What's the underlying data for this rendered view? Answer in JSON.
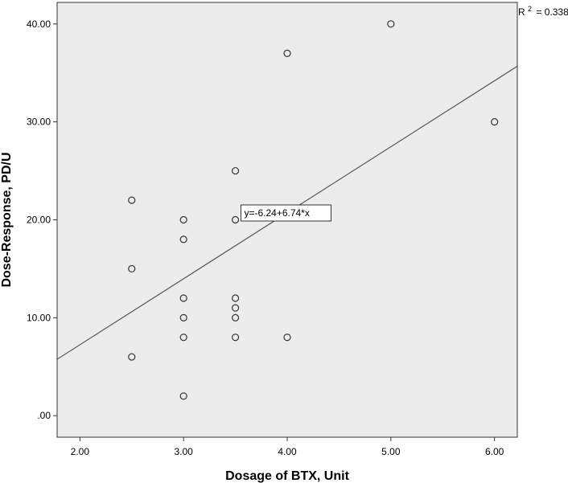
{
  "chart_data": {
    "type": "scatter",
    "title": "",
    "xlabel": "Dosage of BTX, Unit",
    "ylabel": "Dose-Response, PD/U",
    "xlim": [
      1.78,
      6.22
    ],
    "ylim": [
      -2.2,
      42.2
    ],
    "x_ticks": [
      2,
      3,
      4,
      5,
      6
    ],
    "x_tick_labels": [
      "2.00",
      "3.00",
      "4.00",
      "5.00",
      "6.00"
    ],
    "y_ticks": [
      0,
      10,
      20,
      30,
      40
    ],
    "y_tick_labels": [
      ".00",
      "10.00",
      "20.00",
      "30.00",
      "40.00"
    ],
    "grid": false,
    "legend": "none",
    "points": [
      {
        "x": 2.5,
        "y": 22
      },
      {
        "x": 2.5,
        "y": 15
      },
      {
        "x": 2.5,
        "y": 6
      },
      {
        "x": 3.0,
        "y": 20
      },
      {
        "x": 3.0,
        "y": 18
      },
      {
        "x": 3.0,
        "y": 12
      },
      {
        "x": 3.0,
        "y": 10
      },
      {
        "x": 3.0,
        "y": 8
      },
      {
        "x": 3.0,
        "y": 2
      },
      {
        "x": 3.5,
        "y": 25
      },
      {
        "x": 3.5,
        "y": 20
      },
      {
        "x": 3.5,
        "y": 12
      },
      {
        "x": 3.5,
        "y": 11
      },
      {
        "x": 3.5,
        "y": 10
      },
      {
        "x": 3.5,
        "y": 8
      },
      {
        "x": 4.0,
        "y": 37
      },
      {
        "x": 4.0,
        "y": 8
      },
      {
        "x": 5.0,
        "y": 40
      },
      {
        "x": 6.0,
        "y": 30
      }
    ],
    "fit_line": {
      "intercept": -6.24,
      "slope": 6.74
    },
    "fit_equation_label": "y=-6.24+6.74*x",
    "r2_prefix": "R",
    "r2_superscript": "2",
    "r2_value_text": "= 0.338",
    "colors": {
      "plot_background": "#ececec",
      "marker_stroke": "#333333",
      "line": "#555555"
    }
  }
}
